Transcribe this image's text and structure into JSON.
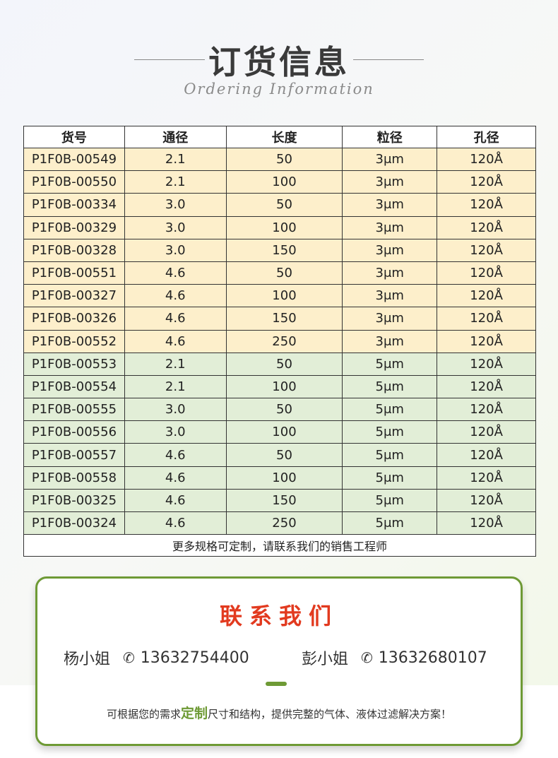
{
  "header": {
    "title": "订货信息",
    "subtitle": "Ordering Information"
  },
  "table": {
    "columns": [
      "货号",
      "通径",
      "长度",
      "粒径",
      "孔径"
    ],
    "rows": [
      [
        "P1F0B-00549",
        "2.1",
        "50",
        "3μm",
        "120Å"
      ],
      [
        "P1F0B-00550",
        "2.1",
        "100",
        "3μm",
        "120Å"
      ],
      [
        "P1F0B-00334",
        "3.0",
        "50",
        "3μm",
        "120Å"
      ],
      [
        "P1F0B-00329",
        "3.0",
        "100",
        "3μm",
        "120Å"
      ],
      [
        "P1F0B-00328",
        "3.0",
        "150",
        "3μm",
        "120Å"
      ],
      [
        "P1F0B-00551",
        "4.6",
        "50",
        "3μm",
        "120Å"
      ],
      [
        "P1F0B-00327",
        "4.6",
        "100",
        "3μm",
        "120Å"
      ],
      [
        "P1F0B-00326",
        "4.6",
        "150",
        "3μm",
        "120Å"
      ],
      [
        "P1F0B-00552",
        "4.6",
        "250",
        "3μm",
        "120Å"
      ],
      [
        "P1F0B-00553",
        "2.1",
        "50",
        "5μm",
        "120Å"
      ],
      [
        "P1F0B-00554",
        "2.1",
        "100",
        "5μm",
        "120Å"
      ],
      [
        "P1F0B-00555",
        "3.0",
        "50",
        "5μm",
        "120Å"
      ],
      [
        "P1F0B-00556",
        "3.0",
        "100",
        "5μm",
        "120Å"
      ],
      [
        "P1F0B-00557",
        "4.6",
        "50",
        "5μm",
        "120Å"
      ],
      [
        "P1F0B-00558",
        "4.6",
        "100",
        "5μm",
        "120Å"
      ],
      [
        "P1F0B-00325",
        "4.6",
        "150",
        "5μm",
        "120Å"
      ],
      [
        "P1F0B-00324",
        "4.6",
        "250",
        "5μm",
        "120Å"
      ]
    ],
    "note": "更多规格可定制，请联系我们的销售工程师"
  },
  "contact": {
    "title": "联系我们",
    "people": [
      {
        "name": "杨小姐",
        "phone": "13632754400",
        "icon": "phone-icon"
      },
      {
        "name": "彭小姐",
        "phone": "13632680107",
        "icon": "phone-icon"
      }
    ],
    "slogan_before": "可根据您的需求",
    "slogan_highlight": "定制",
    "slogan_after": "尺寸和结构，提供完整的气体、液体过滤解决方案！"
  },
  "colors": {
    "row_3um": "#fdefcb",
    "row_5um": "#e2eed7",
    "accent_green": "#6e9a35",
    "title_red": "#e23a1f"
  }
}
